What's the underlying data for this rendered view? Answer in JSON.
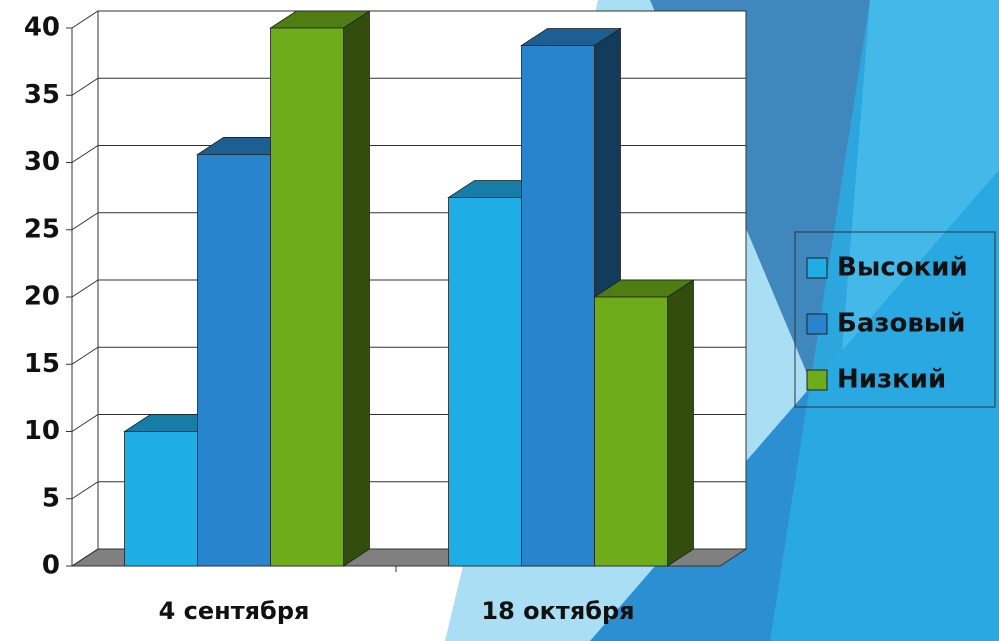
{
  "chart_data": {
    "type": "bar3d",
    "categories": [
      "4 сентября",
      "18 октября"
    ],
    "series": [
      {
        "name": "Высокий",
        "color": "#1fade6",
        "values": [
          10,
          27.4
        ]
      },
      {
        "name": "Базовый",
        "color": "#2884cc",
        "values": [
          30.6,
          38.7
        ]
      },
      {
        "name": "Низкий",
        "color": "#6fac1c",
        "values": [
          40,
          20
        ]
      }
    ],
    "ylim": [
      0,
      40
    ],
    "yticks": [
      0,
      5,
      10,
      15,
      20,
      25,
      30,
      35,
      40
    ],
    "grid": true,
    "legend": "right"
  }
}
